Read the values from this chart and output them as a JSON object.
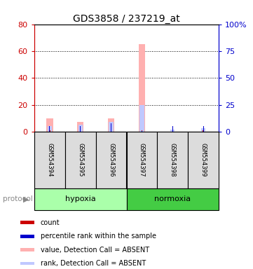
{
  "title": "GDS3858 / 237219_at",
  "samples": [
    "GSM554394",
    "GSM554395",
    "GSM554396",
    "GSM554397",
    "GSM554398",
    "GSM554399"
  ],
  "value_absent": [
    10.0,
    7.5,
    10.0,
    65.0,
    0.0,
    0.0
  ],
  "rank_absent": [
    5.0,
    6.5,
    9.5,
    25.0,
    2.0,
    3.5
  ],
  "count_present": [
    1.0,
    1.0,
    1.0,
    1.0,
    0.5,
    1.0
  ],
  "percentile_present": [
    5.0,
    5.0,
    8.0,
    0.5,
    5.0,
    5.0
  ],
  "left_ylim": [
    0,
    80
  ],
  "right_ylim": [
    0,
    100
  ],
  "left_yticks": [
    0,
    20,
    40,
    60,
    80
  ],
  "right_yticks": [
    0,
    25,
    50,
    75,
    100
  ],
  "right_yticklabels": [
    "0",
    "25",
    "50",
    "75",
    "100%"
  ],
  "left_color": "#CC0000",
  "right_color": "#0000CC",
  "bg_color": "#DCDCDC",
  "hypoxia_color": "#AAFFAA",
  "normoxia_color": "#44CC44",
  "legend_items": [
    {
      "color": "#CC0000",
      "label": "count"
    },
    {
      "color": "#0000CC",
      "label": "percentile rank within the sample"
    },
    {
      "color": "#FFB0B0",
      "label": "value, Detection Call = ABSENT"
    },
    {
      "color": "#C0C8FF",
      "label": "rank, Detection Call = ABSENT"
    }
  ]
}
